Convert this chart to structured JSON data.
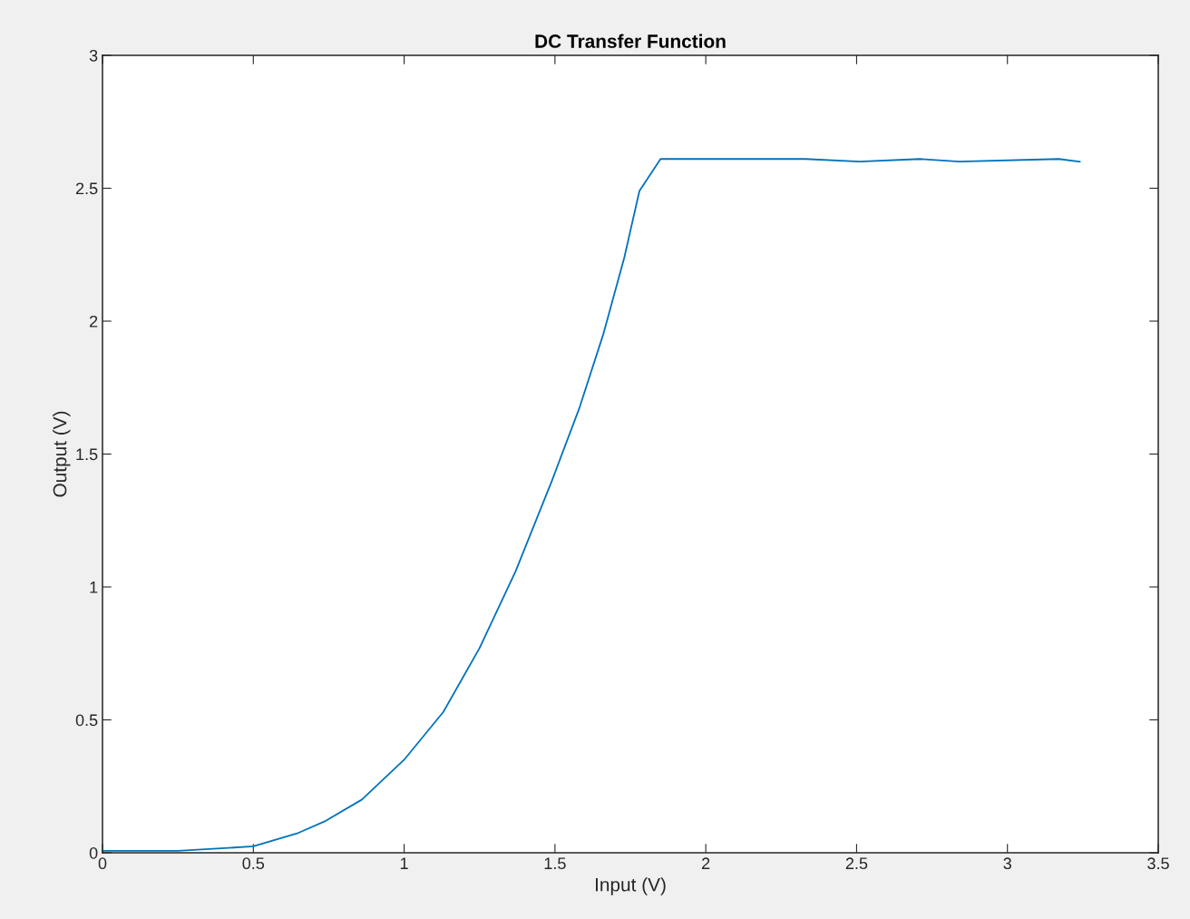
{
  "chart_data": {
    "type": "line",
    "title": "DC Transfer Function",
    "xlabel": "Input (V)",
    "ylabel": "Output (V)",
    "x": [
      0,
      0.25,
      0.5,
      0.65,
      0.74,
      0.86,
      1.0,
      1.13,
      1.25,
      1.37,
      1.49,
      1.58,
      1.66,
      1.73,
      1.78,
      1.85,
      2.09,
      2.33,
      2.51,
      2.71,
      2.84,
      3.17,
      3.24
    ],
    "series": [
      {
        "color": "#0072bd",
        "values": [
          0.007,
          0.007,
          0.024,
          0.075,
          0.12,
          0.2,
          0.35,
          0.53,
          0.77,
          1.06,
          1.4,
          1.67,
          1.95,
          2.24,
          2.49,
          2.61,
          2.61,
          2.61,
          2.6,
          2.61,
          2.6,
          2.61,
          2.6
        ]
      }
    ],
    "xlim": [
      0,
      3.5
    ],
    "xticks": [
      0,
      0.5,
      1,
      1.5,
      2,
      2.5,
      3,
      3.5
    ],
    "ylim": [
      0,
      3
    ],
    "yticks": [
      0,
      0.5,
      1,
      1.5,
      2,
      2.5,
      3
    ],
    "grid": false,
    "marker": "none",
    "line_style": "solid"
  }
}
